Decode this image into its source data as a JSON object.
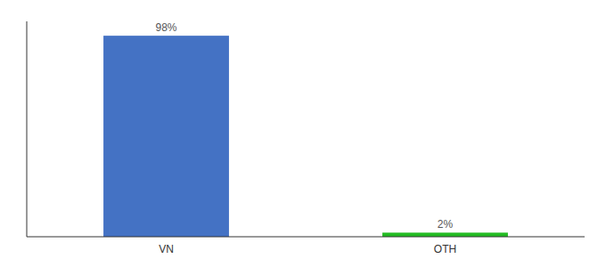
{
  "chart_data": {
    "type": "bar",
    "categories": [
      "VN",
      "OTH"
    ],
    "values": [
      98,
      2
    ],
    "value_labels": [
      "98%",
      "2%"
    ],
    "colors": [
      "#4472c4",
      "#22bb22"
    ],
    "ylim": [
      0,
      105
    ],
    "data_labels": true,
    "tick_labels": "x",
    "grid": false
  }
}
